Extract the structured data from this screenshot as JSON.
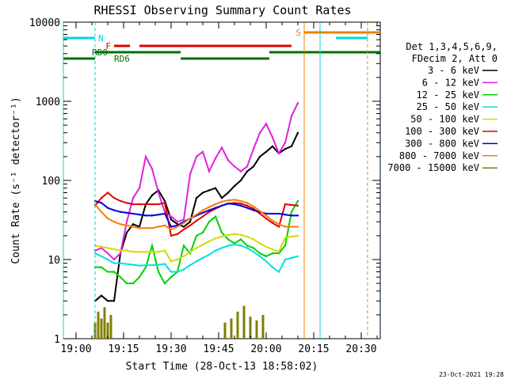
{
  "chart_data": {
    "type": "line",
    "title": "RHESSI Observing Summary Count Rates",
    "xlabel": "Start Time (28-Oct-13 18:58:02)",
    "ylabel": "Count Rate (s⁻¹ detector⁻¹)",
    "y_scale": "log",
    "ylim": [
      1,
      10000
    ],
    "xlim": [
      "18:56",
      "20:36"
    ],
    "x_ticks": [
      "19:00",
      "19:15",
      "19:30",
      "19:45",
      "20:00",
      "20:15",
      "20:30"
    ],
    "y_ticks": [
      {
        "value": 1,
        "label": "1"
      },
      {
        "value": 10,
        "label": "10"
      },
      {
        "value": 100,
        "label": "100"
      },
      {
        "value": 1000,
        "label": "1000"
      },
      {
        "value": 10000,
        "label": "10000"
      }
    ],
    "footer_date": "23-Oct-2021 19:28",
    "legend": {
      "placement": "right",
      "header": [
        "Det 1,3,4,5,6,9,",
        "FDecim 2, Att 0"
      ]
    },
    "series": [
      {
        "name": "3 - 6 keV",
        "color": "#000000",
        "x": [
          "19:06",
          "19:08",
          "19:10",
          "19:12",
          "19:14",
          "19:16",
          "19:18",
          "19:20",
          "19:22",
          "19:24",
          "19:26",
          "19:28",
          "19:30",
          "19:32",
          "19:34",
          "19:36",
          "19:38",
          "19:40",
          "19:42",
          "19:44",
          "19:46",
          "19:48",
          "19:50",
          "19:52",
          "19:54",
          "19:56",
          "19:58",
          "20:00",
          "20:02",
          "20:04",
          "20:06",
          "20:08",
          "20:10"
        ],
        "y": [
          3,
          3.5,
          3,
          3,
          12,
          22,
          28,
          26,
          50,
          65,
          75,
          55,
          32,
          28,
          26,
          30,
          60,
          70,
          75,
          80,
          60,
          70,
          85,
          100,
          130,
          150,
          200,
          230,
          270,
          220,
          250,
          270,
          400
        ]
      },
      {
        "name": "6 - 12 keV",
        "color": "#e020e0",
        "x": [
          "19:06",
          "19:08",
          "19:10",
          "19:12",
          "19:14",
          "19:16",
          "19:18",
          "19:20",
          "19:22",
          "19:24",
          "19:26",
          "19:28",
          "19:30",
          "19:32",
          "19:34",
          "19:36",
          "19:38",
          "19:40",
          "19:42",
          "19:44",
          "19:46",
          "19:48",
          "19:50",
          "19:52",
          "19:54",
          "19:56",
          "19:58",
          "20:00",
          "20:02",
          "20:04",
          "20:06",
          "20:08",
          "20:10"
        ],
        "y": [
          13,
          14,
          12,
          10,
          12,
          30,
          60,
          80,
          200,
          140,
          70,
          40,
          35,
          30,
          32,
          120,
          200,
          230,
          130,
          190,
          260,
          180,
          150,
          130,
          150,
          250,
          400,
          520,
          350,
          220,
          300,
          650,
          950
        ]
      },
      {
        "name": "12 - 25 keV",
        "color": "#00d000",
        "x": [
          "19:06",
          "19:08",
          "19:10",
          "19:12",
          "19:14",
          "19:16",
          "19:18",
          "19:20",
          "19:22",
          "19:24",
          "19:26",
          "19:28",
          "19:30",
          "19:32",
          "19:34",
          "19:36",
          "19:38",
          "19:40",
          "19:42",
          "19:44",
          "19:46",
          "19:48",
          "19:50",
          "19:52",
          "19:54",
          "19:56",
          "19:58",
          "20:00",
          "20:02",
          "20:04",
          "20:06",
          "20:08",
          "20:10"
        ],
        "y": [
          8,
          8,
          7,
          7,
          6,
          5,
          5,
          6,
          8,
          15,
          7,
          5,
          6,
          7,
          15,
          12,
          20,
          22,
          30,
          35,
          22,
          18,
          16,
          18,
          15,
          14,
          12,
          11,
          12,
          12,
          15,
          40,
          55
        ]
      },
      {
        "name": "25 - 50 keV",
        "color": "#00e0e0",
        "x": [
          "19:06",
          "19:08",
          "19:10",
          "19:12",
          "19:14",
          "19:16",
          "19:18",
          "19:20",
          "19:22",
          "19:24",
          "19:26",
          "19:28",
          "19:30",
          "19:32",
          "19:34",
          "19:36",
          "19:38",
          "19:40",
          "19:42",
          "19:44",
          "19:46",
          "19:48",
          "19:50",
          "19:52",
          "19:54",
          "19:56",
          "19:58",
          "20:00",
          "20:02",
          "20:04",
          "20:06",
          "20:08",
          "20:10"
        ],
        "y": [
          12,
          11,
          10,
          9,
          9,
          8.8,
          8.6,
          8.4,
          8.5,
          8.5,
          8.6,
          8.8,
          7,
          7,
          7.5,
          8.5,
          9.5,
          10.5,
          11.5,
          13,
          14,
          15,
          15.5,
          15,
          14,
          12.5,
          11,
          9.5,
          8,
          7,
          10,
          10.5,
          11
        ]
      },
      {
        "name": "50 - 100 keV",
        "color": "#d8d800",
        "x": [
          "19:06",
          "19:08",
          "19:10",
          "19:12",
          "19:14",
          "19:16",
          "19:18",
          "19:20",
          "19:22",
          "19:24",
          "19:26",
          "19:28",
          "19:30",
          "19:32",
          "19:34",
          "19:36",
          "19:38",
          "19:40",
          "19:42",
          "19:44",
          "19:46",
          "19:48",
          "19:50",
          "19:52",
          "19:54",
          "19:56",
          "19:58",
          "20:00",
          "20:02",
          "20:04",
          "20:06",
          "20:08",
          "20:10"
        ],
        "y": [
          15,
          14.5,
          14,
          13.5,
          13,
          13,
          12.5,
          12.5,
          12.5,
          12.5,
          12.5,
          13,
          9.5,
          10,
          11,
          12.5,
          14,
          15.5,
          17,
          18.5,
          19.5,
          20.5,
          21,
          20.5,
          19.5,
          18,
          16,
          14.5,
          13.5,
          12.5,
          19,
          19.5,
          20
        ]
      },
      {
        "name": "100 - 300 keV",
        "color": "#e00000",
        "x": [
          "19:06",
          "19:08",
          "19:10",
          "19:12",
          "19:14",
          "19:16",
          "19:18",
          "19:20",
          "19:22",
          "19:24",
          "19:26",
          "19:28",
          "19:30",
          "19:32",
          "19:34",
          "19:36",
          "19:38",
          "19:40",
          "19:42",
          "19:44",
          "19:46",
          "19:48",
          "19:50",
          "19:52",
          "19:54",
          "19:56",
          "19:58",
          "20:00",
          "20:02",
          "20:04",
          "20:06",
          "20:08",
          "20:10"
        ],
        "y": [
          48,
          60,
          70,
          60,
          55,
          52,
          50,
          50,
          50,
          50,
          50,
          52,
          20,
          21,
          24,
          27,
          31,
          35,
          40,
          44,
          48,
          51,
          52,
          51,
          48,
          44,
          38,
          33,
          29,
          26,
          50,
          49,
          48
        ]
      },
      {
        "name": "300 - 800 keV",
        "color": "#0000e0",
        "x": [
          "19:06",
          "19:08",
          "19:10",
          "19:12",
          "19:14",
          "19:16",
          "19:18",
          "19:20",
          "19:22",
          "19:24",
          "19:26",
          "19:28",
          "19:30",
          "19:32",
          "19:34",
          "19:36",
          "19:38",
          "19:40",
          "19:42",
          "19:44",
          "19:46",
          "19:48",
          "19:50",
          "19:52",
          "19:54",
          "19:56",
          "19:58",
          "20:00",
          "20:02",
          "20:04",
          "20:06",
          "20:08",
          "20:10"
        ],
        "y": [
          55,
          52,
          45,
          42,
          40,
          39,
          38,
          37,
          36,
          36,
          37,
          38,
          26,
          27,
          30,
          33,
          36,
          39,
          42,
          45,
          48,
          51,
          50,
          48,
          45,
          42,
          40,
          38,
          38,
          38,
          37,
          36,
          36
        ]
      },
      {
        "name": "800 - 7000 keV",
        "color": "#f08000",
        "x": [
          "19:06",
          "19:08",
          "19:10",
          "19:12",
          "19:14",
          "19:16",
          "19:18",
          "19:20",
          "19:22",
          "19:24",
          "19:26",
          "19:28",
          "19:30",
          "19:32",
          "19:34",
          "19:36",
          "19:38",
          "19:40",
          "19:42",
          "19:44",
          "19:46",
          "19:48",
          "19:50",
          "19:52",
          "19:54",
          "19:56",
          "19:58",
          "20:00",
          "20:02",
          "20:04",
          "20:06",
          "20:08",
          "20:10"
        ],
        "y": [
          50,
          40,
          33,
          30,
          28,
          27,
          26,
          25,
          25,
          25,
          26,
          27,
          24,
          26,
          29,
          33,
          37,
          42,
          46,
          50,
          54,
          56,
          57,
          55,
          52,
          47,
          41,
          36,
          31,
          28,
          26,
          26,
          26
        ]
      },
      {
        "name": "7000 - 15000 keV",
        "color": "#808000",
        "x": [
          "19:06",
          "19:07",
          "19:08",
          "19:09",
          "19:10",
          "19:11",
          "19:47",
          "19:49",
          "19:51",
          "19:53",
          "19:55",
          "19:57",
          "19:59"
        ],
        "y": [
          1.6,
          2.2,
          1.8,
          2.5,
          1.6,
          2,
          1.6,
          1.8,
          2.2,
          2.6,
          1.9,
          1.7,
          2
        ]
      }
    ],
    "annotations": [
      {
        "label": "N",
        "color": "#00d8d8"
      },
      {
        "label": "F",
        "color": "#e00000"
      },
      {
        "label": "RD0",
        "color": "#007000"
      },
      {
        "label": "RD6",
        "color": "#007000"
      },
      {
        "label": "S",
        "color": "#f08000"
      }
    ]
  }
}
